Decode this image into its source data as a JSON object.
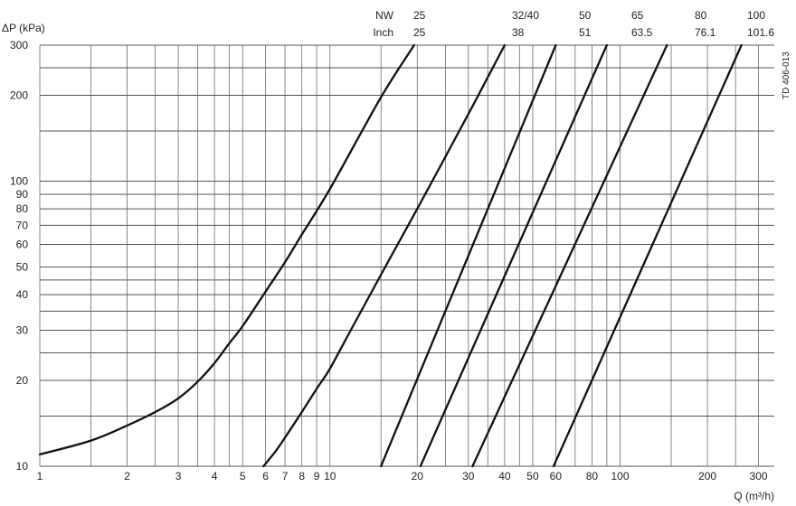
{
  "chart_data": {
    "type": "line",
    "title": "",
    "doc_code": "TD 406-013",
    "ylabel": "ΔP (kPa)",
    "xlabel": "Q (m³/h)",
    "x_scale": "log",
    "y_scale": "log",
    "xlim": [
      1,
      340
    ],
    "ylim": [
      10,
      300
    ],
    "grid": true,
    "x_ticks": [
      {
        "v": 1,
        "label": "1"
      },
      {
        "v": 2,
        "label": "2"
      },
      {
        "v": 3,
        "label": "3"
      },
      {
        "v": 4,
        "label": "4"
      },
      {
        "v": 5,
        "label": "5"
      },
      {
        "v": 6,
        "label": "6"
      },
      {
        "v": 7,
        "label": "7"
      },
      {
        "v": 8,
        "label": "8"
      },
      {
        "v": 9,
        "label": "9"
      },
      {
        "v": 10,
        "label": "10"
      },
      {
        "v": 20,
        "label": "20"
      },
      {
        "v": 30,
        "label": "30"
      },
      {
        "v": 40,
        "label": "40"
      },
      {
        "v": 50,
        "label": "50"
      },
      {
        "v": 60,
        "label": "60"
      },
      {
        "v": 80,
        "label": "80"
      },
      {
        "v": 100,
        "label": "100"
      },
      {
        "v": 200,
        "label": "200"
      },
      {
        "v": 300,
        "label": "300"
      }
    ],
    "y_ticks": [
      {
        "v": 10,
        "label": "10"
      },
      {
        "v": 20,
        "label": "20"
      },
      {
        "v": 30,
        "label": "30"
      },
      {
        "v": 40,
        "label": "40"
      },
      {
        "v": 50,
        "label": "50"
      },
      {
        "v": 60,
        "label": "60"
      },
      {
        "v": 70,
        "label": "70"
      },
      {
        "v": 80,
        "label": "80"
      },
      {
        "v": 90,
        "label": "90"
      },
      {
        "v": 100,
        "label": "100"
      },
      {
        "v": 200,
        "label": "200"
      },
      {
        "v": 300,
        "label": "300"
      }
    ],
    "x_grid": [
      1,
      1.5,
      2,
      2.5,
      3,
      3.5,
      4,
      4.5,
      5,
      6,
      7,
      8,
      9,
      10,
      15,
      20,
      25,
      30,
      35,
      40,
      45,
      50,
      60,
      70,
      80,
      90,
      100,
      150,
      200,
      250,
      300
    ],
    "y_grid": [
      10,
      15,
      20,
      25,
      30,
      35,
      40,
      45,
      50,
      60,
      70,
      80,
      90,
      100,
      150,
      200,
      250,
      300
    ],
    "header": {
      "row1_label": "NW",
      "row2_label": "Inch",
      "nw": [
        "25",
        "32/40",
        "50",
        "65",
        "80",
        "100"
      ],
      "inch": [
        "25",
        "38",
        "51",
        "63.5",
        "76.1",
        "101.6"
      ]
    },
    "series": [
      {
        "points": [
          [
            1.0,
            11.0
          ],
          [
            1.5,
            12.3
          ],
          [
            2.0,
            13.9
          ],
          [
            2.5,
            15.5
          ],
          [
            3.0,
            17.3
          ],
          [
            3.5,
            19.8
          ],
          [
            4.0,
            23.0
          ],
          [
            4.5,
            27.0
          ],
          [
            5.0,
            31.0
          ],
          [
            6.0,
            41.0
          ],
          [
            7.0,
            52.0
          ],
          [
            8.0,
            65.0
          ],
          [
            10.0,
            94.0
          ],
          [
            15.0,
            197.0
          ],
          [
            19.5,
            300.0
          ]
        ]
      },
      {
        "points": [
          [
            5.9,
            10.0
          ],
          [
            6.5,
            11.3
          ],
          [
            7.0,
            12.6
          ],
          [
            8.0,
            15.5
          ],
          [
            9.0,
            18.7
          ],
          [
            10.0,
            22.0
          ],
          [
            12.0,
            31.0
          ],
          [
            15.0,
            47.0
          ],
          [
            20.0,
            80.0
          ],
          [
            30.0,
            172.0
          ],
          [
            40.0,
            300.0
          ]
        ]
      },
      {
        "points": [
          [
            15.0,
            10.0
          ],
          [
            60.0,
            300.0
          ]
        ]
      },
      {
        "points": [
          [
            20.5,
            10.0
          ],
          [
            90.0,
            300.0
          ]
        ]
      },
      {
        "points": [
          [
            31.0,
            10.0
          ],
          [
            145.0,
            300.0
          ]
        ]
      },
      {
        "points": [
          [
            59.0,
            10.0
          ],
          [
            262.0,
            300.0
          ]
        ]
      }
    ]
  }
}
